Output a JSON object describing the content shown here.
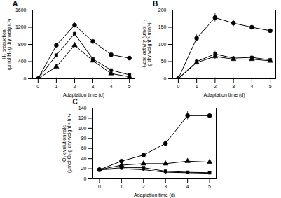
{
  "chart_data": [
    {
      "type": "line",
      "title": "A",
      "xlabel": "Adaptation time (d)",
      "ylabel": "H₂ production\n(μmol H₂ g dry weight⁻¹)",
      "x": [
        0,
        1,
        2,
        3,
        4,
        5
      ],
      "xlim": [
        -0.3,
        5.3
      ],
      "xticks": [
        0,
        1,
        2,
        3,
        4,
        5
      ],
      "ylim": [
        0,
        1600
      ],
      "yticks": [
        0,
        400,
        800,
        1200,
        1600
      ],
      "series": [
        {
          "color": "black",
          "marker": "point",
          "values": [
            0,
            0,
            0,
            0,
            0,
            0
          ],
          "yerr": [
            0,
            0,
            0,
            0,
            0,
            0
          ]
        },
        {
          "color": "black",
          "marker": "triangle",
          "values": [
            0,
            280,
            780,
            420,
            120,
            45
          ],
          "yerr": [
            0,
            20,
            40,
            20,
            10,
            8
          ]
        },
        {
          "color": "black",
          "marker": "square",
          "values": [
            0,
            550,
            1050,
            460,
            200,
            90
          ],
          "yerr": [
            0,
            25,
            30,
            20,
            15,
            10
          ]
        },
        {
          "color": "black",
          "marker": "circle",
          "values": [
            0,
            780,
            1250,
            870,
            560,
            480
          ],
          "yerr": [
            0,
            30,
            50,
            30,
            20,
            15
          ]
        }
      ]
    },
    {
      "type": "line",
      "title": "B",
      "xlabel": "Adaptation time (d)",
      "ylabel": "H₂ase activity (μmol H₂\ng dry weight⁻¹ min⁻¹)",
      "x": [
        0,
        1,
        2,
        3,
        4,
        5
      ],
      "xlim": [
        -0.3,
        5.3
      ],
      "xticks": [
        0,
        1,
        2,
        3,
        4,
        5
      ],
      "ylim": [
        0,
        200
      ],
      "yticks": [
        0,
        50,
        100,
        150,
        200
      ],
      "series": [
        {
          "color": "black",
          "marker": "point",
          "values": [
            0,
            0,
            0,
            0,
            0,
            0
          ],
          "yerr": [
            0,
            0,
            0,
            0,
            0,
            0
          ]
        },
        {
          "color": "black",
          "marker": "triangle",
          "values": [
            0,
            47,
            65,
            57,
            57,
            52
          ],
          "yerr": [
            0,
            5,
            8,
            5,
            5,
            5
          ]
        },
        {
          "color": "black",
          "marker": "square",
          "values": [
            0,
            50,
            72,
            60,
            62,
            55
          ],
          "yerr": [
            0,
            5,
            8,
            5,
            8,
            5
          ]
        },
        {
          "color": "black",
          "marker": "circle",
          "values": [
            0,
            118,
            178,
            162,
            150,
            140
          ],
          "yerr": [
            0,
            10,
            12,
            10,
            8,
            8
          ]
        }
      ]
    },
    {
      "type": "line",
      "title": "C",
      "xlabel": "Adaptation time (d)",
      "ylabel": "O₂ evolution rate\n(μmol O₂ g dry weight⁻¹ h⁻¹)",
      "x": [
        0,
        1,
        2,
        3,
        4,
        5
      ],
      "xlim": [
        -0.3,
        5.3
      ],
      "xticks": [
        0,
        1,
        2,
        3,
        4,
        5
      ],
      "ylim": [
        0,
        140
      ],
      "yticks": [
        0,
        20,
        40,
        60,
        80,
        100,
        120,
        140
      ],
      "series": [
        {
          "color": "black",
          "marker": "point",
          "values": [
            18,
            20,
            18,
            13,
            12,
            11
          ],
          "yerr": [
            1,
            1,
            1,
            1,
            1,
            1
          ]
        },
        {
          "color": "black",
          "marker": "square",
          "values": [
            18,
            22,
            22,
            15,
            13,
            12
          ],
          "yerr": [
            1,
            1,
            1,
            1,
            1,
            1
          ]
        },
        {
          "color": "black",
          "marker": "triangle",
          "values": [
            18,
            27,
            30,
            30,
            35,
            33
          ],
          "yerr": [
            1,
            2,
            2,
            2,
            2,
            2
          ]
        },
        {
          "color": "black",
          "marker": "circle",
          "values": [
            18,
            35,
            47,
            70,
            125,
            125
          ],
          "yerr": [
            2,
            3,
            4,
            5,
            8,
            5
          ]
        }
      ]
    }
  ]
}
